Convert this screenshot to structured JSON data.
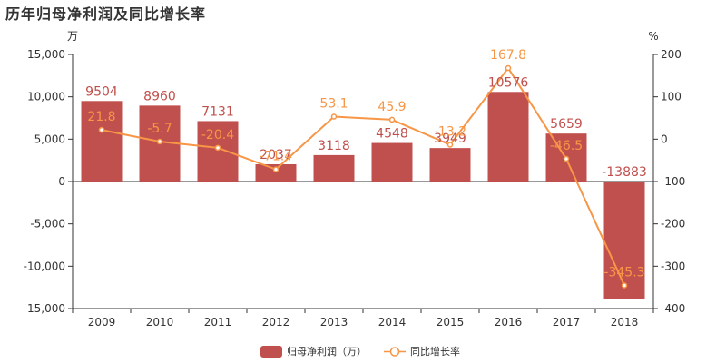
{
  "chart_data": {
    "type": "bar",
    "title": "历年归母净利润及同比增长率",
    "categories": [
      "2009",
      "2010",
      "2011",
      "2012",
      "2013",
      "2014",
      "2015",
      "2016",
      "2017",
      "2018"
    ],
    "series": [
      {
        "name": "归母净利润（万）",
        "type": "bar",
        "axis": "left",
        "values": [
          9504,
          8960,
          7131,
          2037,
          3118,
          4548,
          3949,
          10576,
          5659,
          -13883
        ],
        "labels": [
          "9504",
          "8960",
          "7131",
          "2037",
          "3118",
          "4548",
          "3949",
          "10576",
          "5659",
          "-13883"
        ]
      },
      {
        "name": "同比增长率",
        "type": "line",
        "axis": "right",
        "values": [
          21.8,
          -5.7,
          -20.4,
          -71.4,
          53.1,
          45.9,
          -13.2,
          167.8,
          -46.5,
          -345.3
        ],
        "labels": [
          "21.8",
          "-5.7",
          "-20.4",
          "-71.4",
          "53.1",
          "45.9",
          "-13.2",
          "167.8",
          "-46.5",
          "-345.3"
        ]
      }
    ],
    "y_left": {
      "unit": "万",
      "ylim": [
        -15000,
        15000
      ],
      "ticks": [
        15000,
        10000,
        5000,
        0,
        -5000,
        -10000,
        -15000
      ],
      "tick_labels": [
        "15,000",
        "10,000",
        "5,000",
        "0",
        "-5,000",
        "-10,000",
        "-15,000"
      ]
    },
    "y_right": {
      "unit": "%",
      "ylim": [
        -400,
        200
      ],
      "ticks": [
        200,
        100,
        0,
        -100,
        -200,
        -300,
        -400
      ],
      "tick_labels": [
        "200",
        "100",
        "0",
        "-100",
        "-200",
        "-300",
        "-400"
      ]
    },
    "grid": false,
    "legend_position": "bottom-center",
    "colors": {
      "bar": "#c0504d",
      "line": "#f79646",
      "text": "#333333",
      "axis": "#333333"
    }
  }
}
